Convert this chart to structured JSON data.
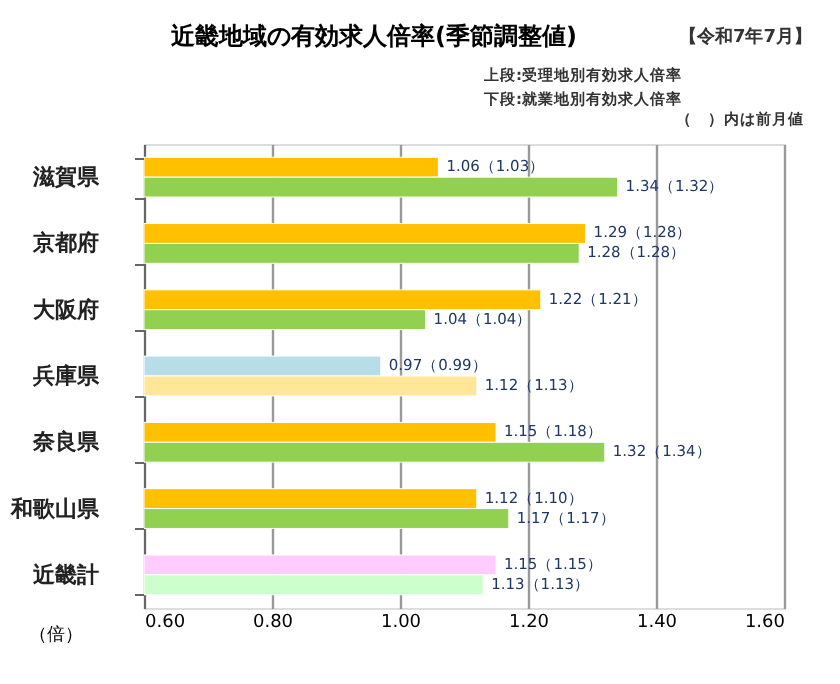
{
  "chart_data": {
    "type": "bar",
    "orientation": "horizontal",
    "title": "近畿地域の有効求人倍率(季節調整値)",
    "categories": [
      "滋賀県",
      "京都府",
      "大阪府",
      "兵庫県",
      "奈良県",
      "和歌山県",
      "近畿計"
    ],
    "series": [
      {
        "colors": [
          "#ffc000",
          "#ffc000",
          "#ffc000",
          "#b7dee8",
          "#ffc000",
          "#ffc000",
          "#ffccff"
        ],
        "values": [
          1.06,
          1.29,
          1.22,
          0.97,
          1.15,
          1.12,
          1.15
        ],
        "value_labels": [
          "1.06（1.03）",
          "1.29（1.28）",
          "1.22（1.21）",
          "0.97（0.99）",
          "1.15（1.18）",
          "1.12（1.10）",
          "1.15（1.15）"
        ]
      },
      {
        "colors": [
          "#92d050",
          "#92d050",
          "#92d050",
          "#ffe699",
          "#92d050",
          "#92d050",
          "#ccffcc"
        ],
        "values": [
          1.34,
          1.28,
          1.04,
          1.12,
          1.32,
          1.17,
          1.13
        ],
        "value_labels": [
          "1.34（1.32）",
          "1.28（1.28）",
          "1.04（1.04）",
          "1.12（1.13）",
          "1.32（1.34）",
          "1.17（1.17）",
          "1.13（1.13）"
        ]
      }
    ],
    "xlabel": "（倍）",
    "xlim": [
      0.6,
      1.6
    ],
    "xticks": [
      {
        "value": 0.6,
        "label": "0.60"
      },
      {
        "value": 0.8,
        "label": "0.80"
      },
      {
        "value": 1.0,
        "label": "1.00"
      },
      {
        "value": 1.2,
        "label": "1.20"
      },
      {
        "value": 1.4,
        "label": "1.40"
      },
      {
        "value": 1.6,
        "label": "1.60"
      }
    ],
    "grid": "x",
    "annotations": [
      "【令和7年7月】",
      "上段:受理地別有効求人倍率",
      "下段:就業地別有効求人倍率",
      "（　）内は前月値"
    ]
  }
}
